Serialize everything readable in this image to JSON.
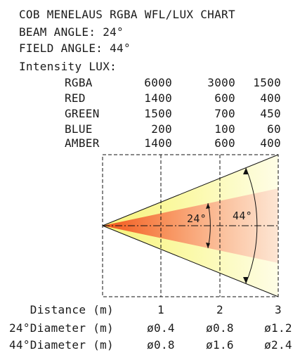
{
  "title": "COB MENELAUS RGBA WFL/LUX CHART",
  "beam_angle": "BEAM ANGLE: 24°",
  "field_angle": "FIELD ANGLE: 44°",
  "intensity_label": "Intensity LUX:",
  "lux_table": {
    "rows": [
      {
        "name": "RGBA",
        "values": [
          "6000",
          "3000",
          "1500"
        ]
      },
      {
        "name": "RED",
        "values": [
          "1400",
          "600",
          "400"
        ]
      },
      {
        "name": "GREEN",
        "values": [
          "1500",
          "700",
          "450"
        ]
      },
      {
        "name": "BLUE",
        "values": [
          "200",
          "100",
          "60"
        ]
      },
      {
        "name": "AMBER",
        "values": [
          "1400",
          "600",
          "400"
        ]
      }
    ]
  },
  "diagram": {
    "inner_angle_label": "24°",
    "outer_angle_label": "44°",
    "colors": {
      "outer_cone": "#fdfcc0",
      "inner_cone_hot": "#f25a1e",
      "inner_cone_cool": "#fde0c8",
      "lines": "#111111"
    }
  },
  "bottom_table": {
    "rows": [
      {
        "label": "Distance (m)",
        "values": [
          "1",
          "2",
          "3"
        ]
      },
      {
        "label": "24°Diameter (m)",
        "values": [
          "ø0.4",
          "ø0.8",
          "ø1.2"
        ]
      },
      {
        "label": "44°Diameter (m)",
        "values": [
          "ø0.8",
          "ø1.6",
          "ø2.4"
        ]
      }
    ]
  }
}
